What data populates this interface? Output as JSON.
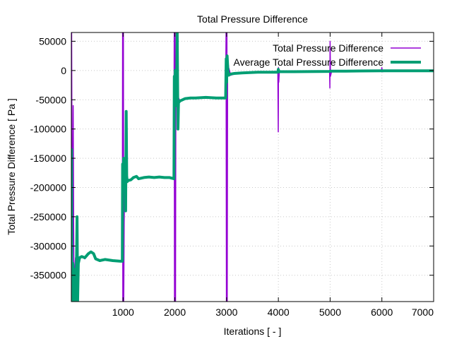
{
  "chart_data": {
    "type": "line",
    "title": "Total Pressure Difference",
    "xlabel": "Iterations [ - ]",
    "ylabel": "Total Pressure Difference [ Pa ]",
    "xlim": [
      0,
      7000
    ],
    "ylim": [
      -395000,
      65000
    ],
    "x_ticks": [
      1000,
      2000,
      3000,
      4000,
      5000,
      6000,
      7000
    ],
    "y_ticks": [
      50000,
      0,
      -50000,
      -100000,
      -150000,
      -200000,
      -250000,
      -300000,
      -350000
    ],
    "x_tick_labels": [
      "1000",
      "2000",
      "3000",
      "4000",
      "5000",
      "6000",
      "7000"
    ],
    "y_tick_labels": [
      "50000",
      "0",
      "-50000",
      "-100000",
      "-150000",
      "-200000",
      "-250000",
      "-300000",
      "-350000"
    ],
    "grid": true,
    "legend": "top-right",
    "series": [
      {
        "name": "Total Pressure Difference",
        "color": "#9400d3",
        "line_width": 1.5,
        "points": [
          [
            0,
            -395000
          ],
          [
            5,
            65000
          ],
          [
            12,
            -150000
          ],
          [
            20,
            -395000
          ],
          [
            35,
            -60000
          ],
          [
            50,
            -395000
          ],
          [
            65,
            -340000
          ],
          [
            80,
            -320000
          ],
          [
            110,
            -330000
          ],
          [
            150,
            -320000
          ],
          [
            200,
            -318000
          ],
          [
            260,
            -322000
          ],
          [
            330,
            -314000
          ],
          [
            380,
            -310000
          ],
          [
            420,
            -312000
          ],
          [
            470,
            -322000
          ],
          [
            550,
            -325000
          ],
          [
            650,
            -323000
          ],
          [
            800,
            -325000
          ],
          [
            950,
            -326000
          ],
          [
            985,
            -325000
          ],
          [
            990,
            65000
          ],
          [
            995,
            -395000
          ],
          [
            1000,
            -200000
          ],
          [
            1005,
            65000
          ],
          [
            1012,
            -395000
          ],
          [
            1020,
            -260000
          ],
          [
            1035,
            -160000
          ],
          [
            1050,
            -185000
          ],
          [
            1100,
            -188000
          ],
          [
            1150,
            -187000
          ],
          [
            1200,
            -183000
          ],
          [
            1260,
            -181000
          ],
          [
            1300,
            -185000
          ],
          [
            1400,
            -183000
          ],
          [
            1500,
            -182000
          ],
          [
            1600,
            -183000
          ],
          [
            1700,
            -182000
          ],
          [
            1800,
            -183000
          ],
          [
            1900,
            -183000
          ],
          [
            1980,
            -184000
          ],
          [
            1988,
            65000
          ],
          [
            1994,
            -395000
          ],
          [
            2000,
            -100000
          ],
          [
            2006,
            65000
          ],
          [
            2012,
            -395000
          ],
          [
            2020,
            -20000
          ],
          [
            2030,
            -40000
          ],
          [
            2060,
            -45000
          ],
          [
            2100,
            -52000
          ],
          [
            2200,
            -48000
          ],
          [
            2300,
            -47000
          ],
          [
            2400,
            -47000
          ],
          [
            2600,
            -46000
          ],
          [
            2800,
            -47000
          ],
          [
            2980,
            -47000
          ],
          [
            2990,
            65000
          ],
          [
            2996,
            -395000
          ],
          [
            3000,
            -20000
          ],
          [
            3006,
            65000
          ],
          [
            3012,
            -395000
          ],
          [
            3020,
            20000
          ],
          [
            3040,
            5000
          ],
          [
            3080,
            -8000
          ],
          [
            3150,
            -6000
          ],
          [
            3300,
            -4000
          ],
          [
            3600,
            -3000
          ],
          [
            3990,
            -3000
          ],
          [
            3998,
            -105000
          ],
          [
            4002,
            5000
          ],
          [
            4008,
            -20000
          ],
          [
            4020,
            0
          ],
          [
            4050,
            -2000
          ],
          [
            4200,
            -2000
          ],
          [
            4600,
            -1500
          ],
          [
            4990,
            -1500
          ],
          [
            4996,
            -30000
          ],
          [
            5000,
            50000
          ],
          [
            5006,
            -10000
          ],
          [
            5030,
            -1000
          ],
          [
            5300,
            -1000
          ],
          [
            5990,
            -500
          ],
          [
            6000,
            5000
          ],
          [
            6006,
            -2000
          ],
          [
            6200,
            -500
          ],
          [
            7000,
            -500
          ]
        ]
      },
      {
        "name": "Average Total Pressure Difference",
        "color": "#009e73",
        "line_width": 4,
        "points": [
          [
            0,
            -395000
          ],
          [
            3,
            -135000
          ],
          [
            8,
            -395000
          ],
          [
            20,
            -395000
          ],
          [
            30,
            -330000
          ],
          [
            45,
            -370000
          ],
          [
            60,
            -395000
          ],
          [
            70,
            -340000
          ],
          [
            85,
            -395000
          ],
          [
            100,
            -330000
          ],
          [
            110,
            -250000
          ],
          [
            122,
            -395000
          ],
          [
            135,
            -330000
          ],
          [
            160,
            -320000
          ],
          [
            200,
            -318000
          ],
          [
            260,
            -320000
          ],
          [
            330,
            -313000
          ],
          [
            380,
            -310000
          ],
          [
            430,
            -313000
          ],
          [
            470,
            -322000
          ],
          [
            550,
            -325000
          ],
          [
            650,
            -323000
          ],
          [
            800,
            -325000
          ],
          [
            950,
            -326000
          ],
          [
            985,
            -326000
          ],
          [
            990,
            -160000
          ],
          [
            998,
            -200000
          ],
          [
            1010,
            -150000
          ],
          [
            1025,
            -190000
          ],
          [
            1040,
            -160000
          ],
          [
            1050,
            -240000
          ],
          [
            1060,
            -70000
          ],
          [
            1070,
            -180000
          ],
          [
            1080,
            -190000
          ],
          [
            1100,
            -188000
          ],
          [
            1150,
            -187000
          ],
          [
            1200,
            -183000
          ],
          [
            1260,
            -181000
          ],
          [
            1300,
            -185000
          ],
          [
            1400,
            -183000
          ],
          [
            1500,
            -182000
          ],
          [
            1600,
            -183000
          ],
          [
            1700,
            -182000
          ],
          [
            1800,
            -183000
          ],
          [
            1900,
            -183000
          ],
          [
            1982,
            -185000
          ],
          [
            1990,
            -10000
          ],
          [
            1998,
            -60000
          ],
          [
            2006,
            0
          ],
          [
            2014,
            -40000
          ],
          [
            2030,
            -60000
          ],
          [
            2045,
            65000
          ],
          [
            2060,
            -100000
          ],
          [
            2070,
            -55000
          ],
          [
            2100,
            -52000
          ],
          [
            2200,
            -48000
          ],
          [
            2300,
            -47000
          ],
          [
            2400,
            -47000
          ],
          [
            2600,
            -46000
          ],
          [
            2800,
            -47000
          ],
          [
            2982,
            -47000
          ],
          [
            2992,
            20000
          ],
          [
            3000,
            -20000
          ],
          [
            3010,
            25000
          ],
          [
            3025,
            0
          ],
          [
            3040,
            -8000
          ],
          [
            3080,
            -6000
          ],
          [
            3150,
            -5000
          ],
          [
            3300,
            -4000
          ],
          [
            3600,
            -3000
          ],
          [
            3990,
            -3000
          ],
          [
            4000,
            2000
          ],
          [
            4010,
            -2000
          ],
          [
            4050,
            -2000
          ],
          [
            4300,
            -2000
          ],
          [
            4990,
            -1500
          ],
          [
            5000,
            -1000
          ],
          [
            5300,
            -1000
          ],
          [
            6000,
            -500
          ],
          [
            7000,
            -500
          ]
        ]
      }
    ]
  }
}
